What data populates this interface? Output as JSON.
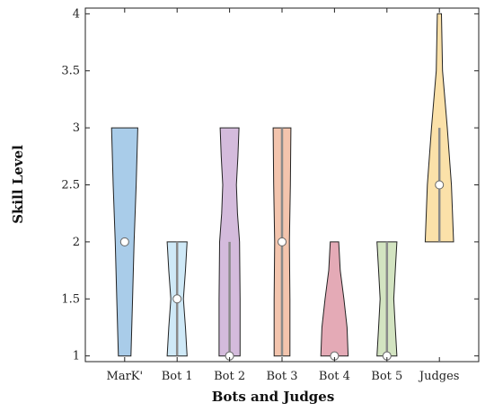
{
  "chart_data": {
    "type": "violin",
    "xlabel": "Bots and Judges",
    "ylabel": "Skill Level",
    "ylim": [
      0.95,
      4.05
    ],
    "yticks": [
      1,
      1.5,
      2,
      2.5,
      3,
      3.5,
      4
    ],
    "ytick_labels": [
      "1",
      "1.5",
      "2",
      "2.5",
      "3",
      "3.5",
      "4"
    ],
    "grid": false,
    "categories": [
      "MarK'",
      "Bot 1",
      "Bot 2",
      "Bot 3",
      "Bot 4",
      "Bot 5",
      "Judges"
    ],
    "series": [
      {
        "category": "MarK'",
        "color": "#a9cce9",
        "range": [
          1,
          3
        ],
        "median": 2,
        "whisker": [
          2,
          2
        ],
        "density": [
          [
            1,
            0.12
          ],
          [
            1.5,
            0.15
          ],
          [
            2,
            0.18
          ],
          [
            2.5,
            0.22
          ],
          [
            3,
            0.25
          ]
        ]
      },
      {
        "category": "Bot 1",
        "color": "#cfe9f7",
        "range": [
          1,
          2
        ],
        "median": 1.5,
        "whisker": [
          1,
          2
        ],
        "density": [
          [
            1,
            0.19
          ],
          [
            1.25,
            0.16
          ],
          [
            1.5,
            0.12
          ],
          [
            1.75,
            0.16
          ],
          [
            2,
            0.19
          ]
        ]
      },
      {
        "category": "Bot 2",
        "color": "#d4bbdc",
        "range": [
          1,
          3
        ],
        "median": 1,
        "whisker": [
          1,
          2
        ],
        "density": [
          [
            1,
            0.2
          ],
          [
            1.5,
            0.2
          ],
          [
            2,
            0.19
          ],
          [
            2.25,
            0.15
          ],
          [
            2.5,
            0.13
          ],
          [
            2.75,
            0.16
          ],
          [
            3,
            0.18
          ]
        ]
      },
      {
        "category": "Bot 3",
        "color": "#f3c4ad",
        "range": [
          1,
          3
        ],
        "median": 2,
        "whisker": [
          1,
          3
        ],
        "density": [
          [
            1,
            0.15
          ],
          [
            1.5,
            0.15
          ],
          [
            2,
            0.14
          ],
          [
            2.5,
            0.16
          ],
          [
            3,
            0.17
          ]
        ]
      },
      {
        "category": "Bot 4",
        "color": "#e4aab6",
        "range": [
          1,
          2
        ],
        "median": 1,
        "whisker": [
          1,
          1
        ],
        "density": [
          [
            1,
            0.26
          ],
          [
            1.25,
            0.24
          ],
          [
            1.5,
            0.18
          ],
          [
            1.75,
            0.11
          ],
          [
            2,
            0.08
          ]
        ]
      },
      {
        "category": "Bot 5",
        "color": "#d3e4c1",
        "range": [
          1,
          2
        ],
        "median": 1,
        "whisker": [
          1,
          2
        ],
        "density": [
          [
            1,
            0.19
          ],
          [
            1.25,
            0.16
          ],
          [
            1.5,
            0.13
          ],
          [
            1.75,
            0.16
          ],
          [
            2,
            0.19
          ]
        ]
      },
      {
        "category": "Judges",
        "color": "#fbe1a9",
        "range": [
          2,
          4
        ],
        "median": 2.5,
        "whisker": [
          2,
          3
        ],
        "density": [
          [
            2,
            0.27
          ],
          [
            2.5,
            0.23
          ],
          [
            3,
            0.15
          ],
          [
            3.5,
            0.06
          ],
          [
            4,
            0.04
          ]
        ]
      }
    ]
  }
}
